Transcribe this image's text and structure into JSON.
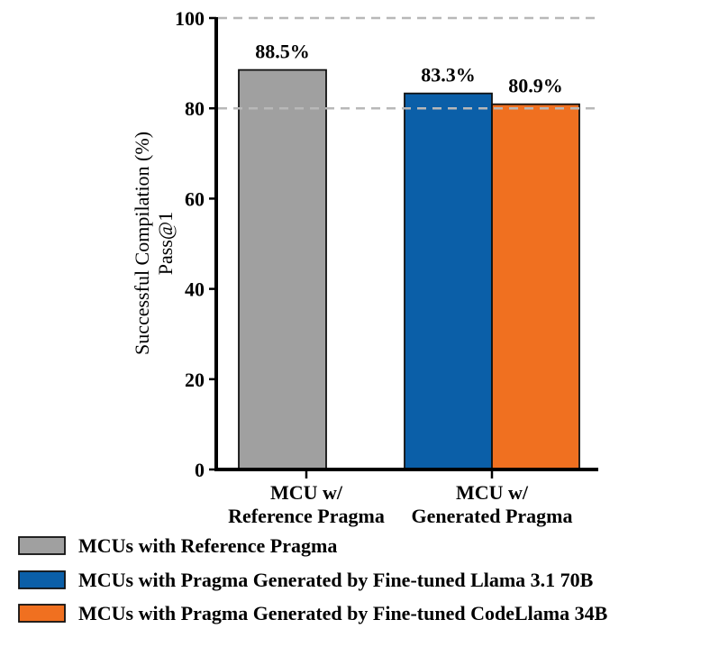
{
  "chart_data": {
    "type": "bar",
    "ylabel_lines": [
      "Successful Compilation (%)",
      "Pass@1"
    ],
    "ylim": [
      0,
      100
    ],
    "yticks": [
      0,
      20,
      40,
      60,
      80,
      100
    ],
    "reference_lines": [
      100,
      80
    ],
    "categories": [
      {
        "lines": [
          "MCU w/",
          "Reference Pragma"
        ]
      },
      {
        "lines": [
          "MCU w/",
          "Generated Pragma"
        ]
      }
    ],
    "bars": [
      {
        "series": 0,
        "category": 0,
        "value": 88.5,
        "label": "88.5%"
      },
      {
        "series": 1,
        "category": 1,
        "value": 83.3,
        "label": "83.3%"
      },
      {
        "series": 2,
        "category": 1,
        "value": 80.9,
        "label": "80.9%"
      }
    ],
    "series": [
      {
        "name": "MCUs with Reference Pragma",
        "color": "#a0a0a0"
      },
      {
        "name": "MCUs with Pragma Generated by Fine-tuned Llama 3.1 70B",
        "color": "#0b5fa8"
      },
      {
        "name": "MCUs with Pragma Generated by Fine-tuned CodeLlama 34B",
        "color": "#f07020"
      }
    ],
    "legend_position": "bottom-left"
  }
}
